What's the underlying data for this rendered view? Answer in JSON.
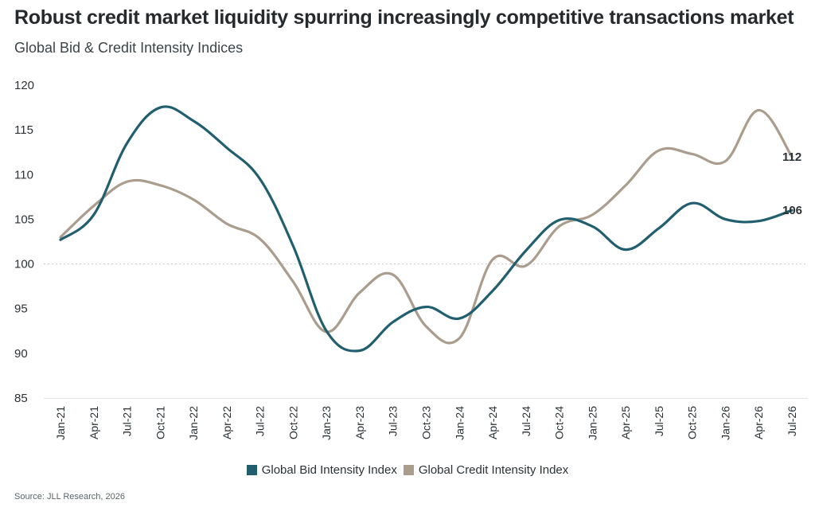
{
  "title": "Robust credit market liquidity spurring increasingly competitive transactions market",
  "subtitle": "Global Bid & Credit Intensity Indices",
  "source": "Source: JLL Research, 2026",
  "chart_data": {
    "type": "line",
    "categories": [
      "Jan-21",
      "Apr-21",
      "Jul-21",
      "Oct-21",
      "Jan-22",
      "Apr-22",
      "Jul-22",
      "Oct-22",
      "Jan-23",
      "Apr-23",
      "Jul-23",
      "Oct-23",
      "Jan-24",
      "Apr-24",
      "Jul-24",
      "Oct-24",
      "Jan-25",
      "Apr-25",
      "Jul-25",
      "Oct-25",
      "Jan-26",
      "Apr-26",
      "Jul-26"
    ],
    "ylim": [
      85,
      120
    ],
    "yticks": [
      85,
      90,
      95,
      100,
      105,
      110,
      115,
      120
    ],
    "reference_line": 100,
    "series": [
      {
        "name": "Global Bid Intensity Index",
        "color": "#215f6f",
        "values": [
          102.7,
          105.5,
          113.5,
          117.5,
          116.0,
          113.0,
          109.5,
          102.0,
          92.5,
          90.3,
          93.5,
          95.2,
          93.9,
          97.0,
          101.5,
          104.9,
          104.2,
          101.6,
          104.0,
          106.8,
          105.0,
          104.8,
          106.0
        ]
      },
      {
        "name": "Global Credit Intensity Index",
        "color": "#ab9d8e",
        "values": [
          103.0,
          106.5,
          109.2,
          108.8,
          107.2,
          104.5,
          102.8,
          98.0,
          92.4,
          96.8,
          98.8,
          93.0,
          91.7,
          100.5,
          99.8,
          104.2,
          105.5,
          108.8,
          112.7,
          112.3,
          111.5,
          117.2,
          112.0
        ]
      }
    ],
    "end_labels": [
      "106",
      "112"
    ],
    "legend_position": "bottom",
    "grid": false
  }
}
